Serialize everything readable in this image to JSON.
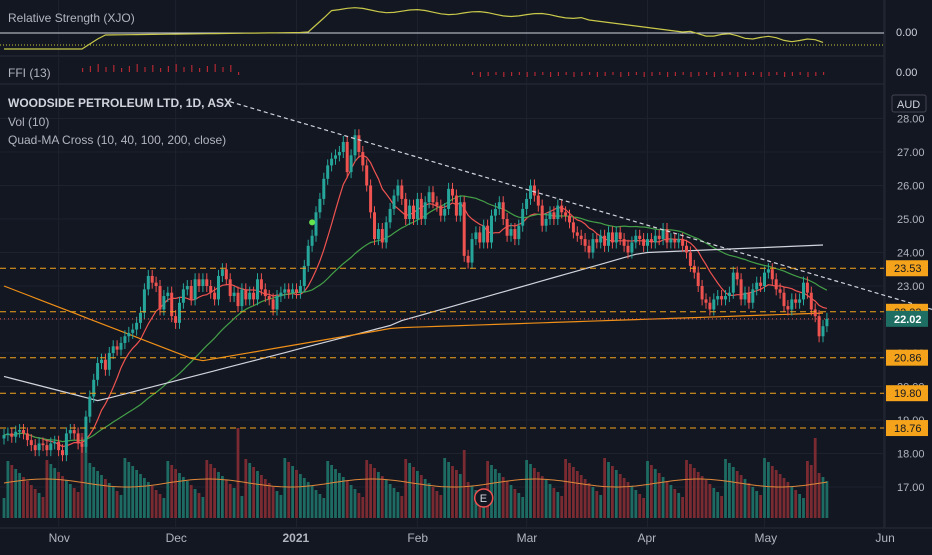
{
  "chart_data": {
    "type": "candlestick",
    "header": {
      "symbol": "WOODSIDE PETROLEUM LTD, 1D, ASX",
      "indicators": [
        "Vol (10)",
        "Quad-MA Cross (10, 40, 100, 200, close)"
      ]
    },
    "panes": {
      "rs": {
        "title": "Relative Strength (XJO)",
        "last_value": "0.00"
      },
      "ffi": {
        "title": "FFI (13)",
        "last_value": "0.00"
      }
    },
    "currency": "AUD",
    "y_ticks": [
      "28.00",
      "27.00",
      "26.00",
      "25.00",
      "24.00",
      "23.00",
      "22.00",
      "21.00",
      "20.00",
      "19.00",
      "18.00",
      "17.00"
    ],
    "x_ticks": [
      {
        "label": "Nov",
        "day": 14
      },
      {
        "label": "Dec",
        "day": 44
      },
      {
        "label": "2021",
        "day": 75
      },
      {
        "label": "Feb",
        "day": 106
      },
      {
        "label": "Mar",
        "day": 134
      },
      {
        "label": "Apr",
        "day": 165
      },
      {
        "label": "May",
        "day": 195
      },
      {
        "label": "Jun",
        "day": 226
      }
    ],
    "price_lines": [
      {
        "value": 23.53,
        "label": "23.53"
      },
      {
        "value": 22.23,
        "label": "22.23"
      },
      {
        "value": 20.86,
        "label": "20.86"
      },
      {
        "value": 19.8,
        "label": "19.80"
      },
      {
        "value": 18.76,
        "label": "18.76"
      }
    ],
    "last_price": {
      "value": 22.02,
      "label": "22.02"
    },
    "earnings_marker": {
      "label": "E",
      "day": 123
    },
    "trendline": {
      "from": {
        "day": 58,
        "price": 28.5
      },
      "to": {
        "day": 238,
        "price": 22.3
      }
    },
    "closes": [
      [
        0,
        18.55
      ],
      [
        1,
        18.6
      ],
      [
        2,
        18.5
      ],
      [
        3,
        18.65
      ],
      [
        4,
        18.7
      ],
      [
        5,
        18.6
      ],
      [
        6,
        18.4
      ],
      [
        7,
        18.25
      ],
      [
        8,
        18.1
      ],
      [
        9,
        18.3
      ],
      [
        10,
        18.25
      ],
      [
        11,
        18.1
      ],
      [
        12,
        18.3
      ],
      [
        13,
        18.35
      ],
      [
        14,
        18.1
      ],
      [
        15,
        17.95
      ],
      [
        16,
        18.6
      ],
      [
        17,
        18.7
      ],
      [
        18,
        18.6
      ],
      [
        19,
        18.3
      ],
      [
        20,
        18.2
      ],
      [
        21,
        19.1
      ],
      [
        22,
        19.7
      ],
      [
        23,
        20.2
      ],
      [
        24,
        20.7
      ],
      [
        25,
        20.8
      ],
      [
        26,
        20.5
      ],
      [
        27,
        21.0
      ],
      [
        28,
        21.2
      ],
      [
        29,
        21.1
      ],
      [
        30,
        21.3
      ],
      [
        31,
        21.5
      ],
      [
        32,
        21.6
      ],
      [
        33,
        21.7
      ],
      [
        34,
        21.9
      ],
      [
        35,
        22.2
      ],
      [
        36,
        22.9
      ],
      [
        37,
        23.3
      ],
      [
        38,
        23.1
      ],
      [
        39,
        23.0
      ],
      [
        40,
        22.3
      ],
      [
        41,
        22.7
      ],
      [
        42,
        22.8
      ],
      [
        43,
        22.1
      ],
      [
        44,
        21.9
      ],
      [
        45,
        22.5
      ],
      [
        46,
        22.9
      ],
      [
        47,
        23.0
      ],
      [
        48,
        22.6
      ],
      [
        49,
        23.2
      ],
      [
        50,
        23.0
      ],
      [
        51,
        23.2
      ],
      [
        52,
        23.0
      ],
      [
        53,
        22.8
      ],
      [
        54,
        22.6
      ],
      [
        55,
        23.3
      ],
      [
        56,
        23.5
      ],
      [
        57,
        23.2
      ],
      [
        58,
        22.7
      ],
      [
        59,
        22.8
      ],
      [
        60,
        22.4
      ],
      [
        61,
        22.9
      ],
      [
        62,
        22.6
      ],
      [
        63,
        22.8
      ],
      [
        64,
        22.6
      ],
      [
        65,
        23.2
      ],
      [
        66,
        22.9
      ],
      [
        67,
        22.7
      ],
      [
        68,
        22.6
      ],
      [
        69,
        22.3
      ],
      [
        70,
        22.7
      ],
      [
        71,
        22.8
      ],
      [
        72,
        22.9
      ],
      [
        73,
        22.8
      ],
      [
        74,
        22.9
      ],
      [
        75,
        22.8
      ],
      [
        76,
        23.0
      ],
      [
        77,
        23.6
      ],
      [
        78,
        24.2
      ],
      [
        79,
        24.5
      ],
      [
        80,
        25.2
      ],
      [
        81,
        25.6
      ],
      [
        82,
        26.2
      ],
      [
        83,
        26.6
      ],
      [
        84,
        26.8
      ],
      [
        85,
        26.9
      ],
      [
        86,
        27.0
      ],
      [
        87,
        27.3
      ],
      [
        88,
        26.4
      ],
      [
        89,
        26.9
      ],
      [
        90,
        27.5
      ],
      [
        91,
        27.0
      ],
      [
        92,
        26.6
      ],
      [
        93,
        26.0
      ],
      [
        94,
        25.2
      ],
      [
        95,
        24.4
      ],
      [
        96,
        24.7
      ],
      [
        97,
        24.3
      ],
      [
        98,
        24.9
      ],
      [
        99,
        25.3
      ],
      [
        100,
        25.7
      ],
      [
        101,
        26.0
      ],
      [
        102,
        25.6
      ],
      [
        103,
        25.0
      ],
      [
        104,
        25.4
      ],
      [
        105,
        25.0
      ],
      [
        106,
        25.6
      ],
      [
        107,
        25.0
      ],
      [
        108,
        25.5
      ],
      [
        109,
        25.8
      ],
      [
        110,
        25.5
      ],
      [
        111,
        25.4
      ],
      [
        112,
        25.1
      ],
      [
        113,
        25.3
      ],
      [
        114,
        25.9
      ],
      [
        115,
        25.7
      ],
      [
        116,
        25.1
      ],
      [
        117,
        25.5
      ],
      [
        118,
        23.9
      ],
      [
        119,
        23.7
      ],
      [
        120,
        24.4
      ],
      [
        121,
        24.6
      ],
      [
        122,
        24.3
      ],
      [
        123,
        24.8
      ],
      [
        124,
        24.3
      ],
      [
        125,
        25.1
      ],
      [
        126,
        25.3
      ],
      [
        127,
        25.5
      ],
      [
        128,
        25.0
      ],
      [
        129,
        24.5
      ],
      [
        130,
        24.7
      ],
      [
        131,
        24.4
      ],
      [
        132,
        24.8
      ],
      [
        133,
        25.3
      ],
      [
        134,
        25.6
      ],
      [
        135,
        26.0
      ],
      [
        136,
        25.7
      ],
      [
        137,
        25.4
      ],
      [
        138,
        24.8
      ],
      [
        139,
        25.0
      ],
      [
        140,
        25.2
      ],
      [
        141,
        25.0
      ],
      [
        142,
        25.4
      ],
      [
        143,
        25.2
      ],
      [
        144,
        25.1
      ],
      [
        145,
        24.9
      ],
      [
        146,
        24.6
      ],
      [
        147,
        24.5
      ],
      [
        148,
        24.4
      ],
      [
        149,
        24.2
      ],
      [
        150,
        24.0
      ],
      [
        151,
        24.4
      ],
      [
        152,
        24.3
      ],
      [
        153,
        24.5
      ],
      [
        154,
        24.2
      ],
      [
        155,
        24.6
      ],
      [
        156,
        24.3
      ],
      [
        157,
        24.6
      ],
      [
        158,
        24.4
      ],
      [
        159,
        24.2
      ],
      [
        160,
        24.0
      ],
      [
        161,
        24.3
      ],
      [
        162,
        24.5
      ],
      [
        163,
        24.4
      ],
      [
        164,
        24.2
      ],
      [
        165,
        24.4
      ],
      [
        166,
        24.3
      ],
      [
        167,
        24.5
      ],
      [
        168,
        24.4
      ],
      [
        169,
        24.7
      ],
      [
        170,
        24.3
      ],
      [
        171,
        24.4
      ],
      [
        172,
        24.3
      ],
      [
        173,
        24.4
      ],
      [
        174,
        24.2
      ],
      [
        175,
        24.0
      ],
      [
        176,
        23.6
      ],
      [
        177,
        23.4
      ],
      [
        178,
        23.0
      ],
      [
        179,
        22.6
      ],
      [
        180,
        22.5
      ],
      [
        181,
        22.3
      ],
      [
        182,
        22.6
      ],
      [
        183,
        22.7
      ],
      [
        184,
        22.6
      ],
      [
        185,
        22.7
      ],
      [
        186,
        22.8
      ],
      [
        187,
        23.4
      ],
      [
        188,
        23.2
      ],
      [
        189,
        22.6
      ],
      [
        190,
        22.8
      ],
      [
        191,
        22.5
      ],
      [
        192,
        22.9
      ],
      [
        193,
        23.1
      ],
      [
        194,
        23.0
      ],
      [
        195,
        23.4
      ],
      [
        196,
        23.5
      ],
      [
        197,
        23.2
      ],
      [
        198,
        22.9
      ],
      [
        199,
        22.8
      ],
      [
        200,
        22.4
      ],
      [
        201,
        22.3
      ],
      [
        202,
        22.6
      ],
      [
        203,
        22.5
      ],
      [
        204,
        22.6
      ],
      [
        205,
        23.1
      ],
      [
        206,
        22.8
      ],
      [
        207,
        22.3
      ],
      [
        208,
        22.1
      ],
      [
        209,
        21.5
      ],
      [
        210,
        21.8
      ],
      [
        211,
        22.02
      ]
    ],
    "volume_range": [
      0,
      100
    ]
  }
}
